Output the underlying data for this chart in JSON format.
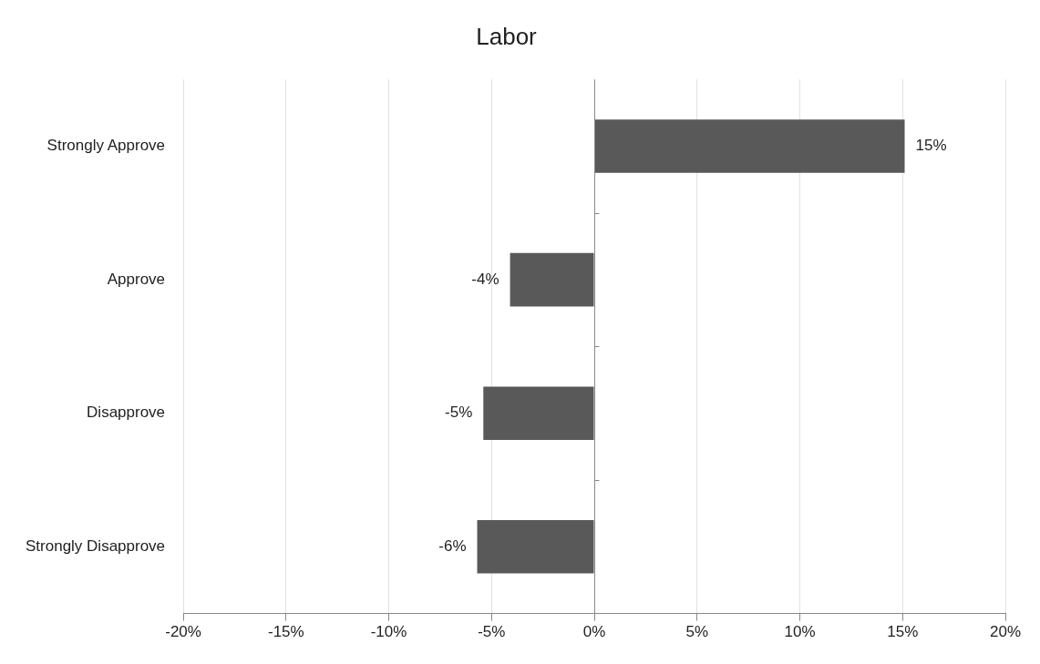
{
  "chart_data": {
    "type": "bar",
    "title": "Labor",
    "orientation": "horizontal",
    "categories": [
      "Strongly Approve",
      "Approve",
      "Disapprove",
      "Strongly Disapprove"
    ],
    "values": [
      15.1,
      -4.1,
      -5.4,
      -5.7
    ],
    "value_labels": [
      "15%",
      "-4%",
      "-5%",
      "-6%"
    ],
    "color": "#595959",
    "xlim": [
      -20,
      20
    ],
    "xticks": [
      {
        "value": -20,
        "label": "-20%"
      },
      {
        "value": -15,
        "label": "-15%"
      },
      {
        "value": -10,
        "label": "-10%"
      },
      {
        "value": -5,
        "label": "-5%"
      },
      {
        "value": 0,
        "label": "0%"
      },
      {
        "value": 5,
        "label": "5%"
      },
      {
        "value": 10,
        "label": "10%"
      },
      {
        "value": 15,
        "label": "15%"
      },
      {
        "value": 20,
        "label": "20%"
      }
    ],
    "grid": "x",
    "legend": false
  }
}
